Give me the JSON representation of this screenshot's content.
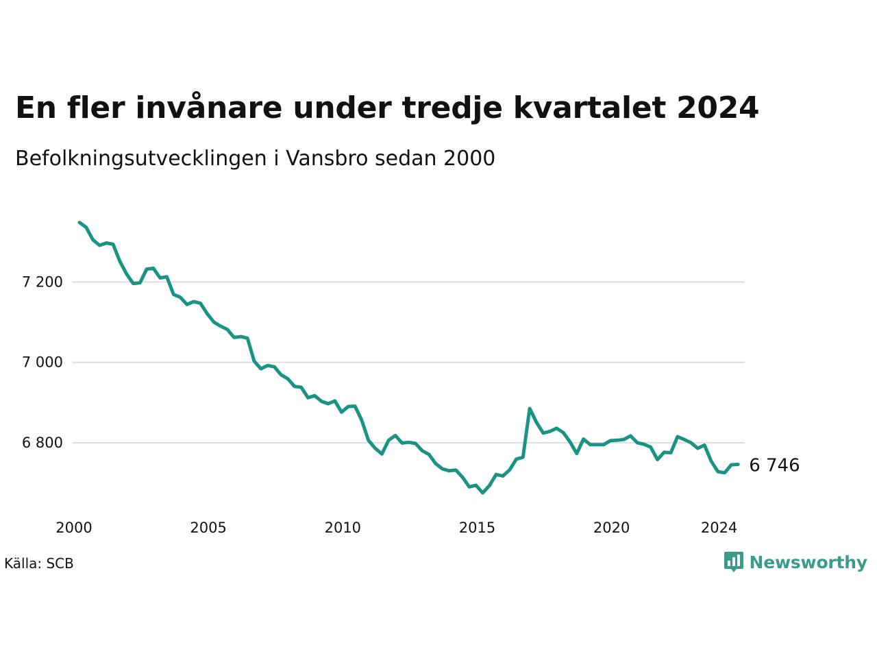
{
  "header": {
    "title": "En fler invånare under tredje kvartalet 2024",
    "subtitle": "Befolkningsutvecklingen i Vansbro sedan 2000"
  },
  "footer": {
    "source": "Källa: SCB",
    "brand": "Newsworthy",
    "brand_icon": "bar-chart-badge-icon",
    "brand_color": "#3a9a8b"
  },
  "chart_data": {
    "type": "line",
    "title": "En fler invånare under tredje kvartalet 2024",
    "subtitle": "Befolkningsutvecklingen i Vansbro sedan 2000",
    "xlabel": "",
    "ylabel": "",
    "x_ticks": [
      2000,
      2005,
      2010,
      2015,
      2020,
      2024
    ],
    "y_ticks": [
      {
        "value": 6800,
        "label": "6 800"
      },
      {
        "value": 7000,
        "label": "7 000"
      },
      {
        "value": 7200,
        "label": "7 200"
      }
    ],
    "xlim": [
      2000,
      2024.75
    ],
    "ylim": [
      6665,
      7390
    ],
    "grid": "horizontal",
    "line_color": "#1a9385",
    "end_label": "6 746",
    "series": [
      {
        "x": [
          2000.0,
          2000.25,
          2000.5,
          2000.75,
          2001.0,
          2001.25,
          2001.5,
          2001.75,
          2002.0,
          2002.25,
          2002.5,
          2002.75,
          2003.0,
          2003.25,
          2003.5,
          2003.75,
          2004.0,
          2004.25,
          2004.5,
          2004.75,
          2005.0,
          2005.25,
          2005.5,
          2005.75,
          2006.0,
          2006.25,
          2006.5,
          2006.75,
          2007.0,
          2007.25,
          2007.5,
          2007.75,
          2008.0,
          2008.25,
          2008.5,
          2008.75,
          2009.0,
          2009.25,
          2009.5,
          2009.75,
          2010.0,
          2010.25,
          2010.5,
          2010.75,
          2011.0,
          2011.25,
          2011.5,
          2011.75,
          2012.0,
          2012.25,
          2012.5,
          2012.75,
          2013.0,
          2013.25,
          2013.5,
          2013.75,
          2014.0,
          2014.25,
          2014.5,
          2014.75,
          2015.0,
          2015.25,
          2015.5,
          2015.75,
          2016.0,
          2016.25,
          2016.5,
          2016.75,
          2017.0,
          2017.25,
          2017.5,
          2017.75,
          2018.0,
          2018.25,
          2018.5,
          2018.75,
          2019.0,
          2019.25,
          2019.5,
          2019.75,
          2020.0,
          2020.25,
          2020.5,
          2020.75,
          2021.0,
          2021.25,
          2021.5,
          2021.75,
          2022.0,
          2022.25,
          2022.5,
          2022.75,
          2023.0,
          2023.25,
          2023.5,
          2023.75,
          2024.0,
          2024.25,
          2024.5
        ],
        "values": [
          7348,
          7336,
          7305,
          7291,
          7297,
          7294,
          7252,
          7220,
          7196,
          7198,
          7232,
          7234,
          7210,
          7213,
          7169,
          7162,
          7144,
          7151,
          7147,
          7121,
          7100,
          7090,
          7082,
          7062,
          7064,
          7060,
          7003,
          6984,
          6992,
          6989,
          6969,
          6959,
          6940,
          6938,
          6912,
          6917,
          6903,
          6897,
          6904,
          6876,
          6890,
          6891,
          6856,
          6806,
          6786,
          6772,
          6806,
          6818,
          6799,
          6801,
          6798,
          6780,
          6771,
          6748,
          6735,
          6730,
          6732,
          6714,
          6690,
          6694,
          6675,
          6693,
          6721,
          6717,
          6732,
          6759,
          6764,
          6885,
          6851,
          6824,
          6828,
          6836,
          6825,
          6802,
          6773,
          6809,
          6795,
          6795,
          6795,
          6805,
          6806,
          6808,
          6817,
          6800,
          6796,
          6789,
          6758,
          6776,
          6775,
          6815,
          6808,
          6800,
          6786,
          6794,
          6754,
          6728,
          6725,
          6745,
          6746
        ]
      }
    ]
  }
}
